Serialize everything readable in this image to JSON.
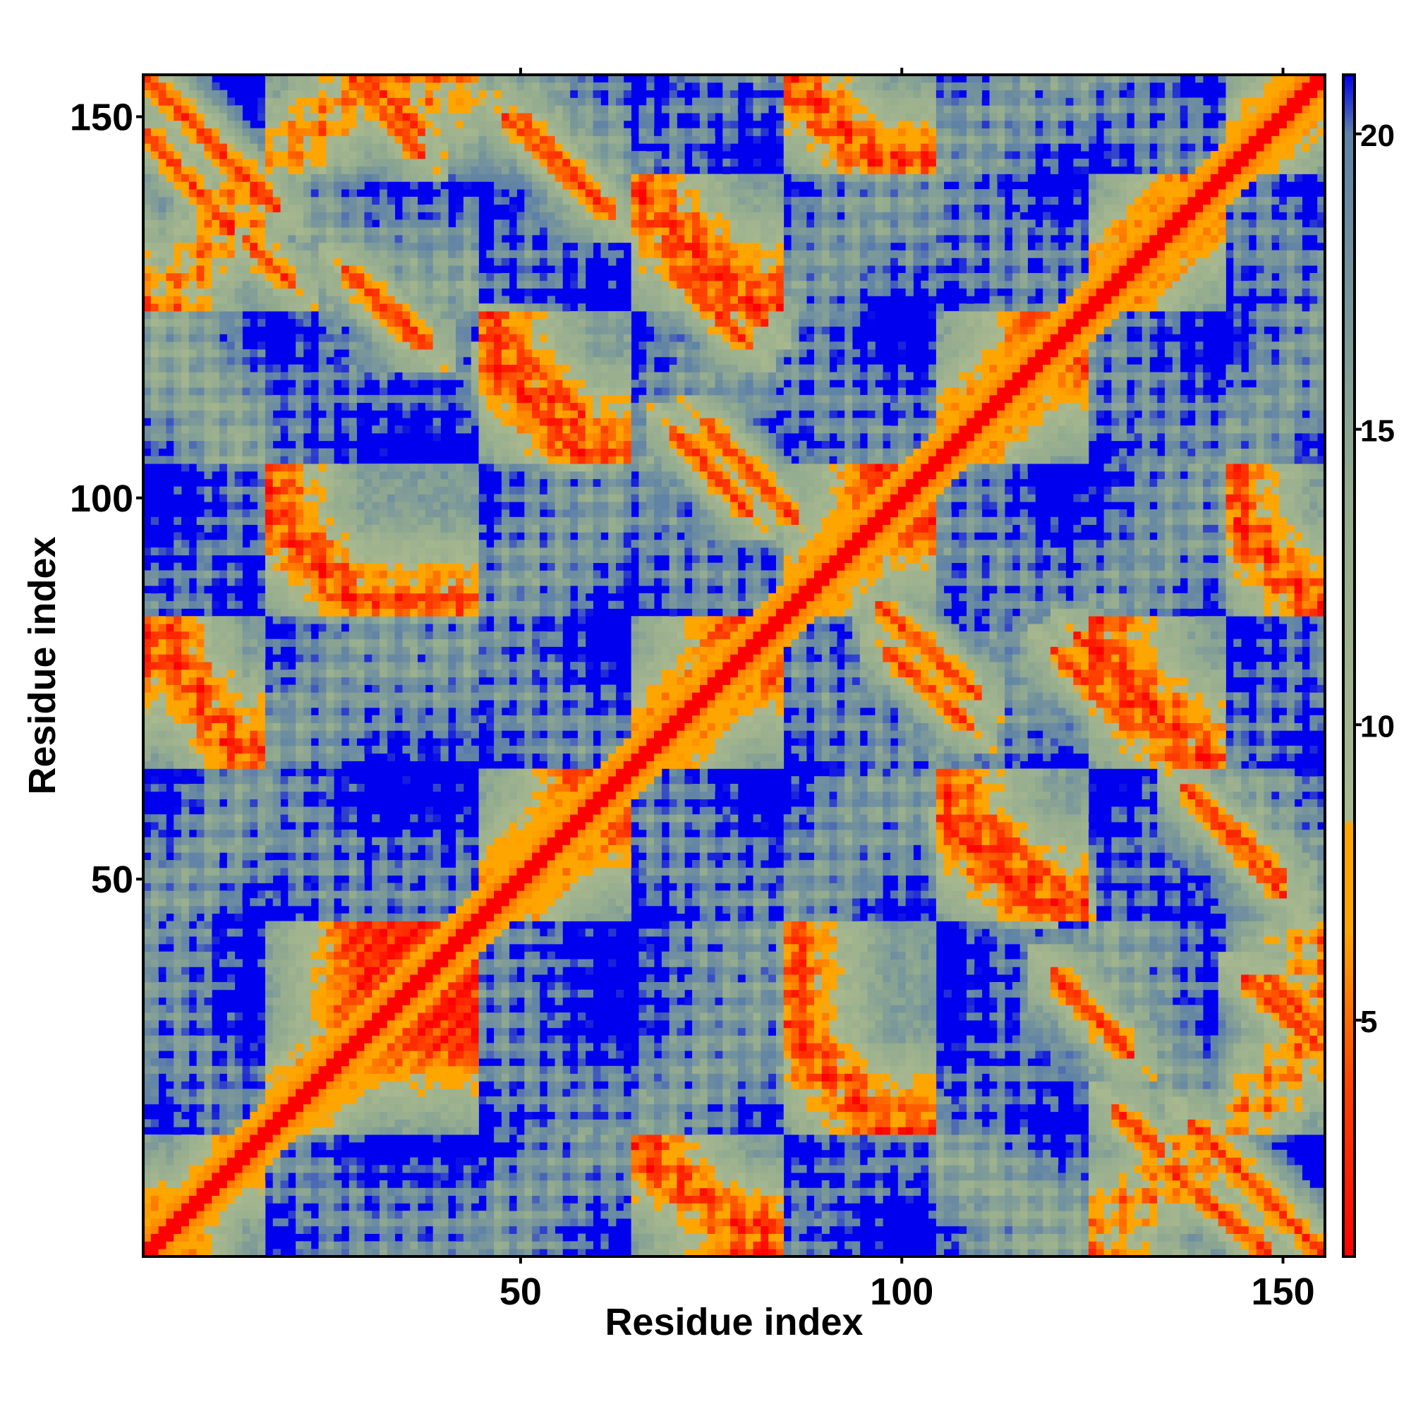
{
  "chart_data": {
    "type": "heatmap",
    "title": "",
    "xlabel": "Residue index",
    "ylabel": "Residue index",
    "n_residues": 155,
    "xlim": [
      1,
      155
    ],
    "ylim": [
      1,
      155
    ],
    "x_ticks": [
      50,
      100,
      150
    ],
    "y_ticks": [
      50,
      100,
      150
    ],
    "x_tick_labels": [
      "50",
      "100",
      "150"
    ],
    "y_tick_labels": [
      "50",
      "100",
      "150"
    ],
    "colorbar": {
      "range": [
        1,
        21
      ],
      "ticks": [
        5,
        10,
        15,
        20
      ],
      "tick_labels": [
        "5",
        "10",
        "15",
        "20"
      ],
      "stops": [
        {
          "value": 1,
          "color": "#ff0000"
        },
        {
          "value": 4,
          "color": "#ff4500"
        },
        {
          "value": 6.5,
          "color": "#ffa500"
        },
        {
          "value": 8.3,
          "color": "#ffa500"
        },
        {
          "value": 8.4,
          "color": "#a9b98f"
        },
        {
          "value": 14,
          "color": "#93ab8f"
        },
        {
          "value": 20,
          "color": "#5f82a7"
        },
        {
          "value": 21,
          "color": "#0000ee"
        }
      ]
    },
    "cap_color": "#0000ee",
    "cap_value": 21,
    "grid": false,
    "structure": {
      "helices": [
        [
          4,
          14
        ],
        [
          17,
          30
        ],
        [
          45,
          60
        ],
        [
          65,
          80
        ],
        [
          85,
          98
        ],
        [
          105,
          120
        ],
        [
          125,
          140
        ],
        [
          143,
          155
        ]
      ],
      "contact_bands": [
        {
          "x": [
            1,
            18
          ],
          "y": [
            138,
            155
          ],
          "orientation": "anti"
        },
        {
          "x": [
            30,
            37
          ],
          "y": [
            148,
            155
          ],
          "orientation": "anti"
        },
        {
          "x": [
            50,
            62
          ],
          "y": [
            137,
            150
          ],
          "orientation": "anti"
        },
        {
          "x": [
            27,
            38
          ],
          "y": [
            120,
            130
          ],
          "orientation": "anti"
        },
        {
          "x": [
            47,
            56
          ],
          "y": [
            107,
            117
          ],
          "orientation": "anti"
        },
        {
          "x": [
            70,
            80
          ],
          "y": [
            120,
            130
          ],
          "orientation": "anti"
        },
        {
          "x": [
            70,
            80
          ],
          "y": [
            98,
            109
          ],
          "orientation": "anti"
        },
        {
          "x": [
            97,
            110
          ],
          "y": [
            74,
            86
          ],
          "orientation": "anti"
        },
        {
          "x": [
            123,
            134
          ],
          "y": [
            71,
            82
          ],
          "orientation": "anti"
        },
        {
          "x": [
            111,
            122
          ],
          "y": [
            48,
            58
          ],
          "orientation": "anti"
        },
        {
          "x": [
            139,
            150
          ],
          "y": [
            48,
            60
          ],
          "orientation": "anti"
        },
        {
          "x": [
            120,
            130
          ],
          "y": [
            27,
            37
          ],
          "orientation": "anti"
        },
        {
          "x": [
            145,
            155
          ],
          "y": [
            28,
            37
          ],
          "orientation": "anti"
        },
        {
          "x": [
            135,
            148
          ],
          "y": [
            1,
            12
          ],
          "orientation": "anti"
        },
        {
          "x": [
            128,
            134
          ],
          "y": [
            14,
            20
          ],
          "orientation": "anti"
        }
      ]
    }
  }
}
